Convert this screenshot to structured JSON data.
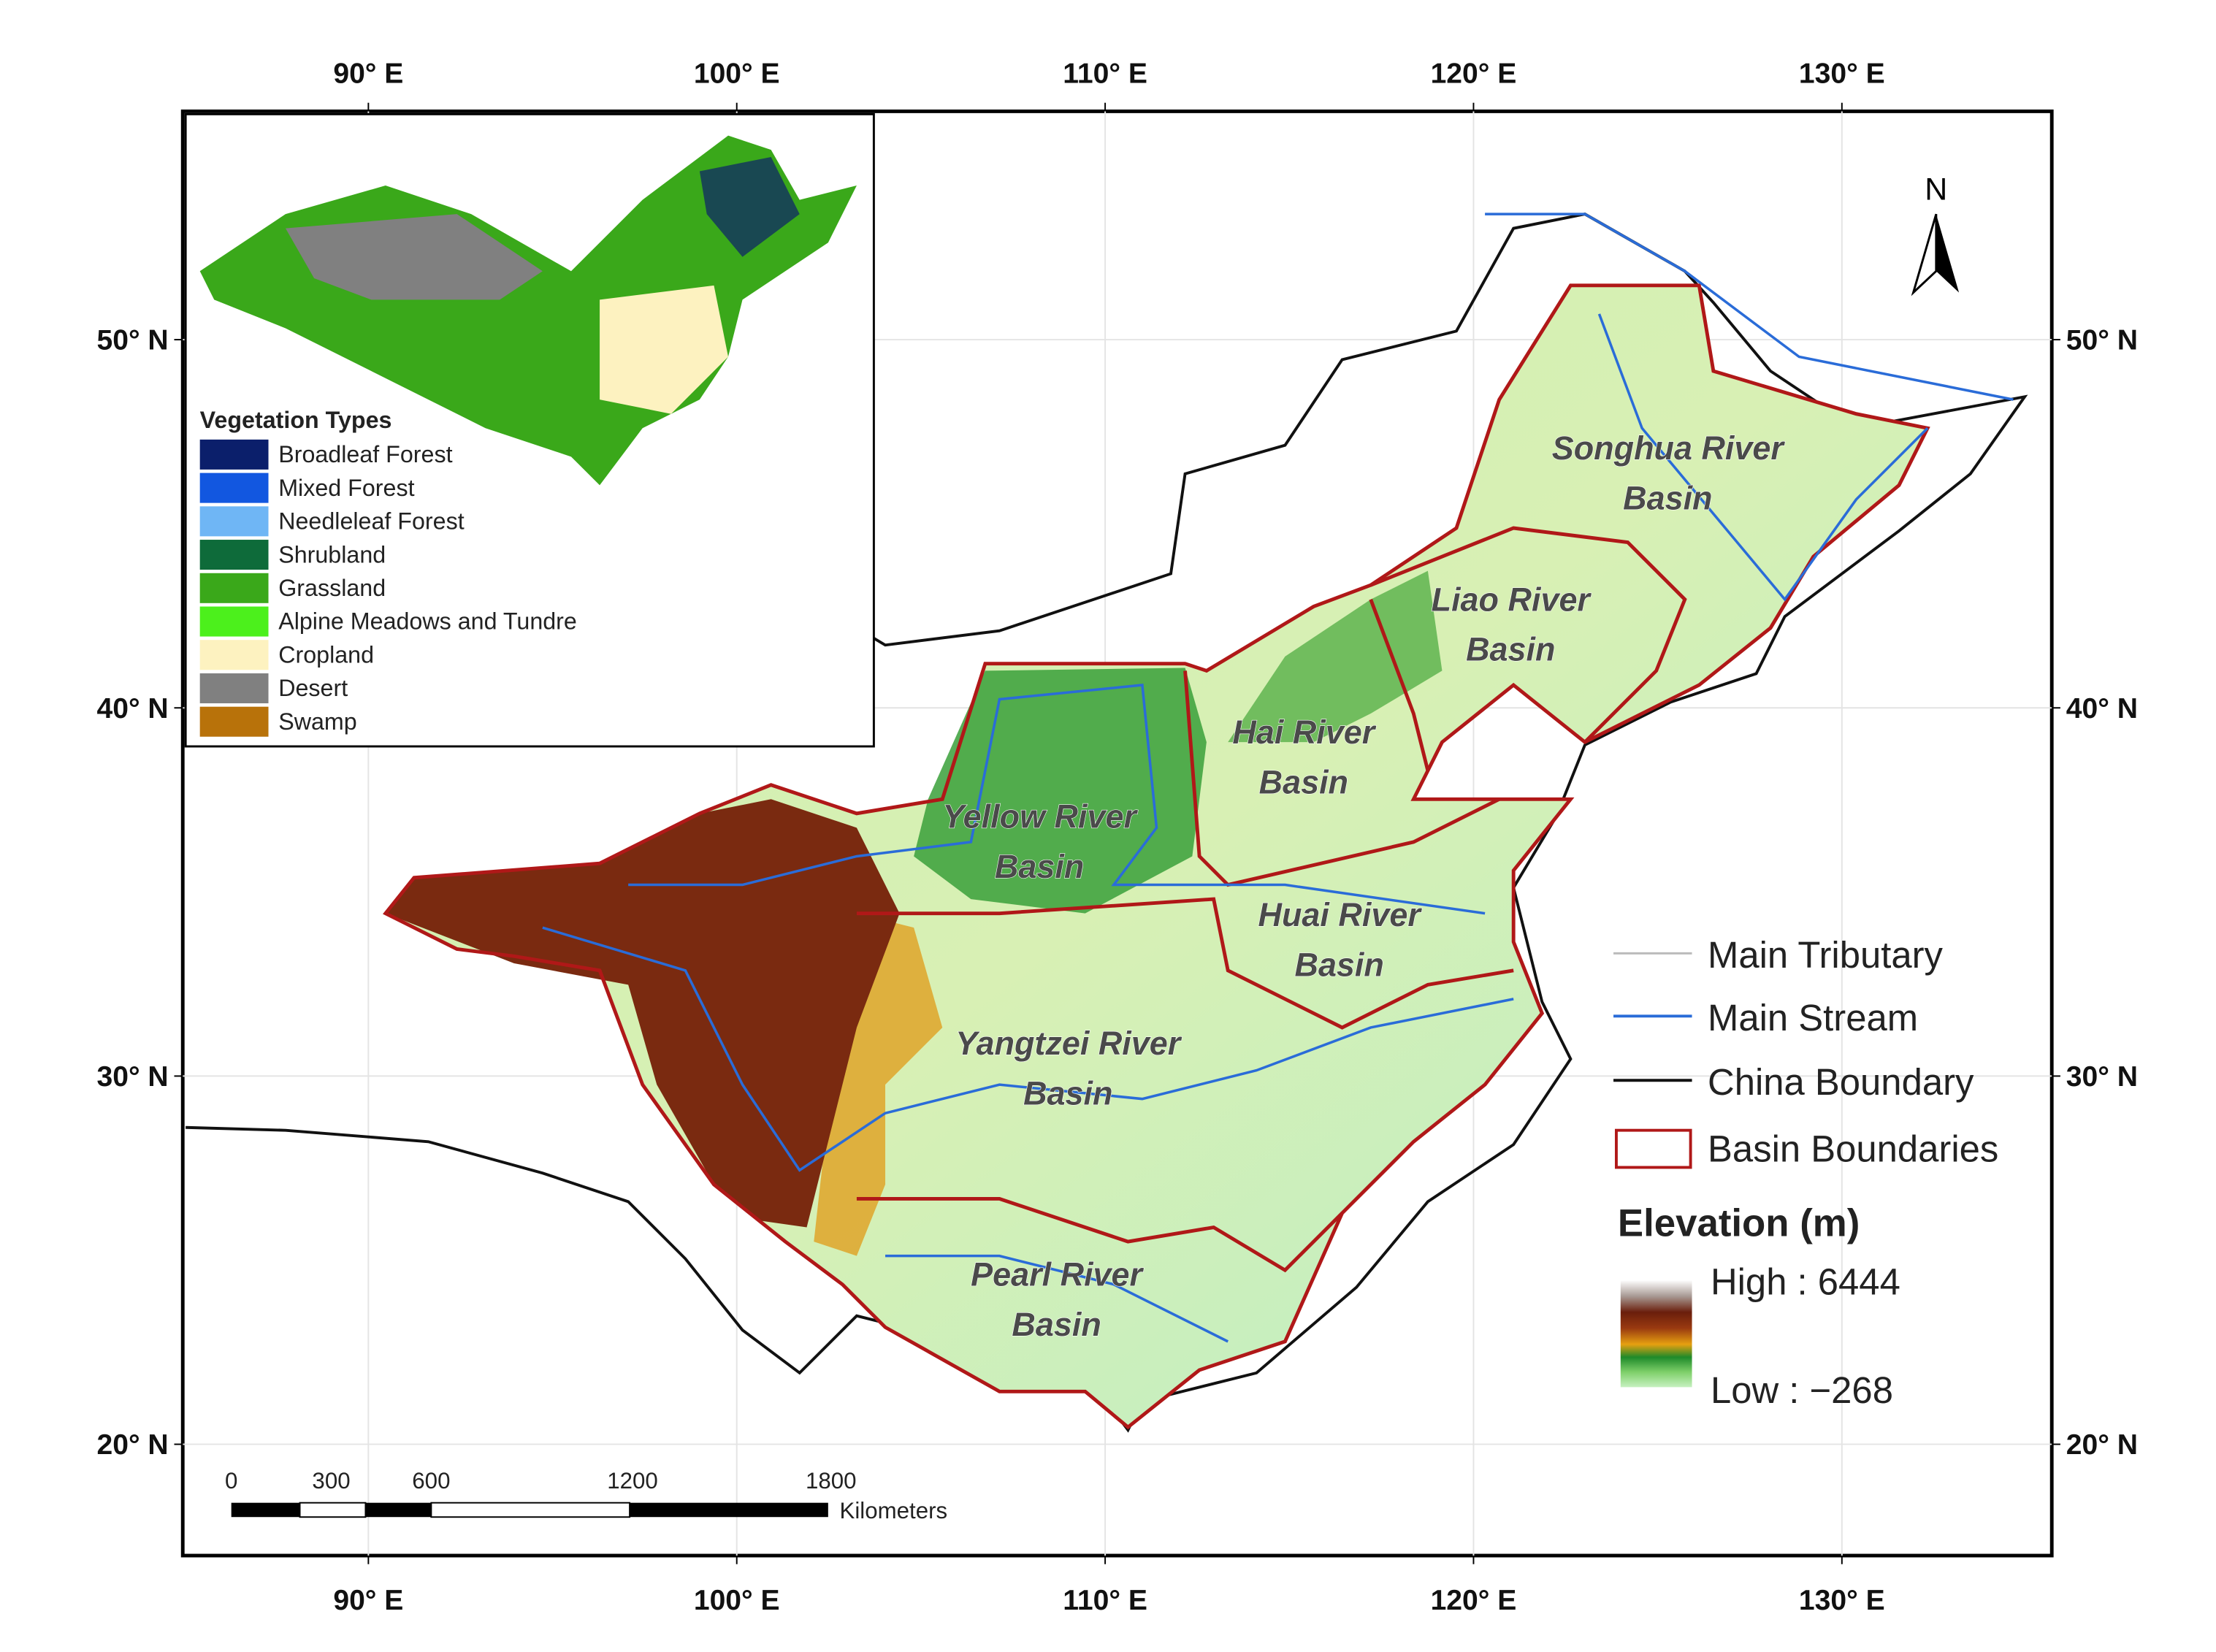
{
  "map": {
    "lon_ticks": [
      "90° E",
      "100° E",
      "110° E",
      "120° E",
      "130° E"
    ],
    "lat_ticks": [
      "50° N",
      "40° N",
      "30° N",
      "20° N"
    ],
    "north": "N",
    "basins": [
      {
        "lines": [
          "Songhua River",
          "Basin"
        ]
      },
      {
        "lines": [
          "Liao River",
          "Basin"
        ]
      },
      {
        "lines": [
          "Hai River",
          "Basin"
        ]
      },
      {
        "lines": [
          "Yellow River",
          "Basin"
        ]
      },
      {
        "lines": [
          "Huai River",
          "Basin"
        ]
      },
      {
        "lines": [
          "Yangtzei River",
          "Basin"
        ]
      },
      {
        "lines": [
          "Pearl River",
          "Basin"
        ]
      }
    ],
    "legend": {
      "items": [
        "Main Tributary",
        "Main Stream",
        "China Boundary",
        "Basin Boundaries"
      ]
    },
    "elevation": {
      "title": "Elevation (m)",
      "high": "High : 6444",
      "low": "Low :  −268"
    },
    "inset": {
      "title": "Vegetation Types",
      "items": [
        "Broadleaf Forest",
        "Mixed Forest",
        "Needleleaf Forest",
        "Shrubland",
        "Grassland",
        "Alpine Meadows and Tundre",
        "Cropland",
        "Desert",
        "Swamp"
      ]
    },
    "scale": {
      "labels": [
        "0",
        "300",
        "600",
        "1200",
        "1800"
      ],
      "unit": "Kilometers"
    }
  }
}
